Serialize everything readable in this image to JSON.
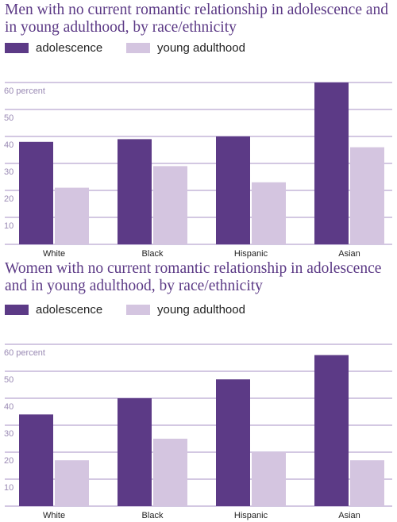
{
  "theme": {
    "adolescence_color": "#5c3a86",
    "young_adulthood_color": "#d4c5e0",
    "title_color": "#5c3a86",
    "grid_color": "#a791c4",
    "tick_color": "#9a8ab4"
  },
  "chart_data": [
    {
      "type": "bar",
      "title": "Men with no current romantic relationship in adolescence and in young adulthood, by race/ethnicity",
      "categories": [
        "White",
        "Black",
        "Hispanic",
        "Asian"
      ],
      "series": [
        {
          "name": "adolescence",
          "values": [
            38,
            39,
            40,
            60
          ]
        },
        {
          "name": "young adulthood",
          "values": [
            21,
            29,
            23,
            36
          ]
        }
      ],
      "y_ticks": [
        "10",
        "20",
        "30",
        "40",
        "50",
        "60 percent"
      ],
      "ylim": [
        0,
        60
      ],
      "grid": true,
      "legend_position": "top-left"
    },
    {
      "type": "bar",
      "title": "Women with no current romantic relationship in adolescence and in young adulthood, by race/ethnicity",
      "categories": [
        "White",
        "Black",
        "Hispanic",
        "Asian"
      ],
      "series": [
        {
          "name": "adolescence",
          "values": [
            34,
            40,
            47,
            56
          ]
        },
        {
          "name": "young adulthood",
          "values": [
            17,
            25,
            20,
            17
          ]
        }
      ],
      "y_ticks": [
        "10",
        "20",
        "30",
        "40",
        "50",
        "60 percent"
      ],
      "ylim": [
        0,
        60
      ],
      "grid": true,
      "legend_position": "top-left"
    }
  ]
}
